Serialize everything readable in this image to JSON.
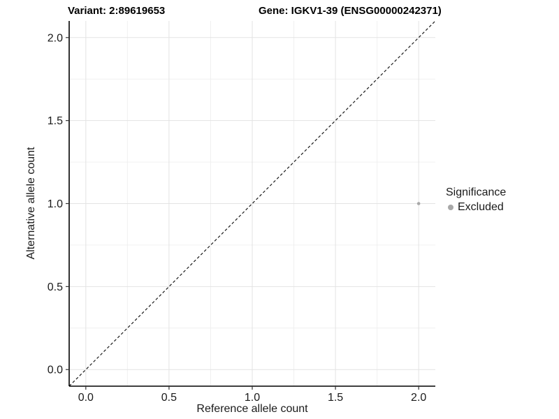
{
  "header": {
    "variant_title": "Variant: 2:89619653",
    "gene_title": "Gene: IGKV1-39 (ENSG00000242371)"
  },
  "chart_data": {
    "type": "scatter",
    "xlabel": "Reference allele count",
    "ylabel": "Alternative allele count",
    "xlim": [
      -0.1,
      2.1
    ],
    "ylim": [
      -0.1,
      2.1
    ],
    "xticks": {
      "values": [
        0.0,
        0.5,
        1.0,
        1.5,
        2.0
      ],
      "labels": [
        "0.0",
        "0.5",
        "1.0",
        "1.5",
        "2.0"
      ]
    },
    "yticks": {
      "values": [
        0.0,
        0.5,
        1.0,
        1.5,
        2.0
      ],
      "labels": [
        "0.0",
        "0.5",
        "1.0",
        "1.5",
        "2.0"
      ]
    },
    "minor_step": 0.25,
    "grid": "on",
    "identity_line": {
      "style": "dashed",
      "from": [
        -0.1,
        -0.1
      ],
      "to": [
        2.1,
        2.1
      ],
      "color": "#1a1a1a"
    },
    "points": [
      {
        "x": 2.0,
        "y": 1.0,
        "significance": "Excluded",
        "color": "#a8a8a8",
        "radius": 2.3
      }
    ],
    "legend": {
      "title": "Significance",
      "position": "right",
      "items": [
        {
          "label": "Excluded",
          "color": "#a8a8a8"
        }
      ]
    },
    "style": {
      "grid_major_color": "#e3e3e3",
      "grid_minor_color": "#f0f0f0",
      "axis_line_color": "#000000",
      "tick_color": "#333333",
      "tick_label_color": "#1a1a1a"
    }
  }
}
